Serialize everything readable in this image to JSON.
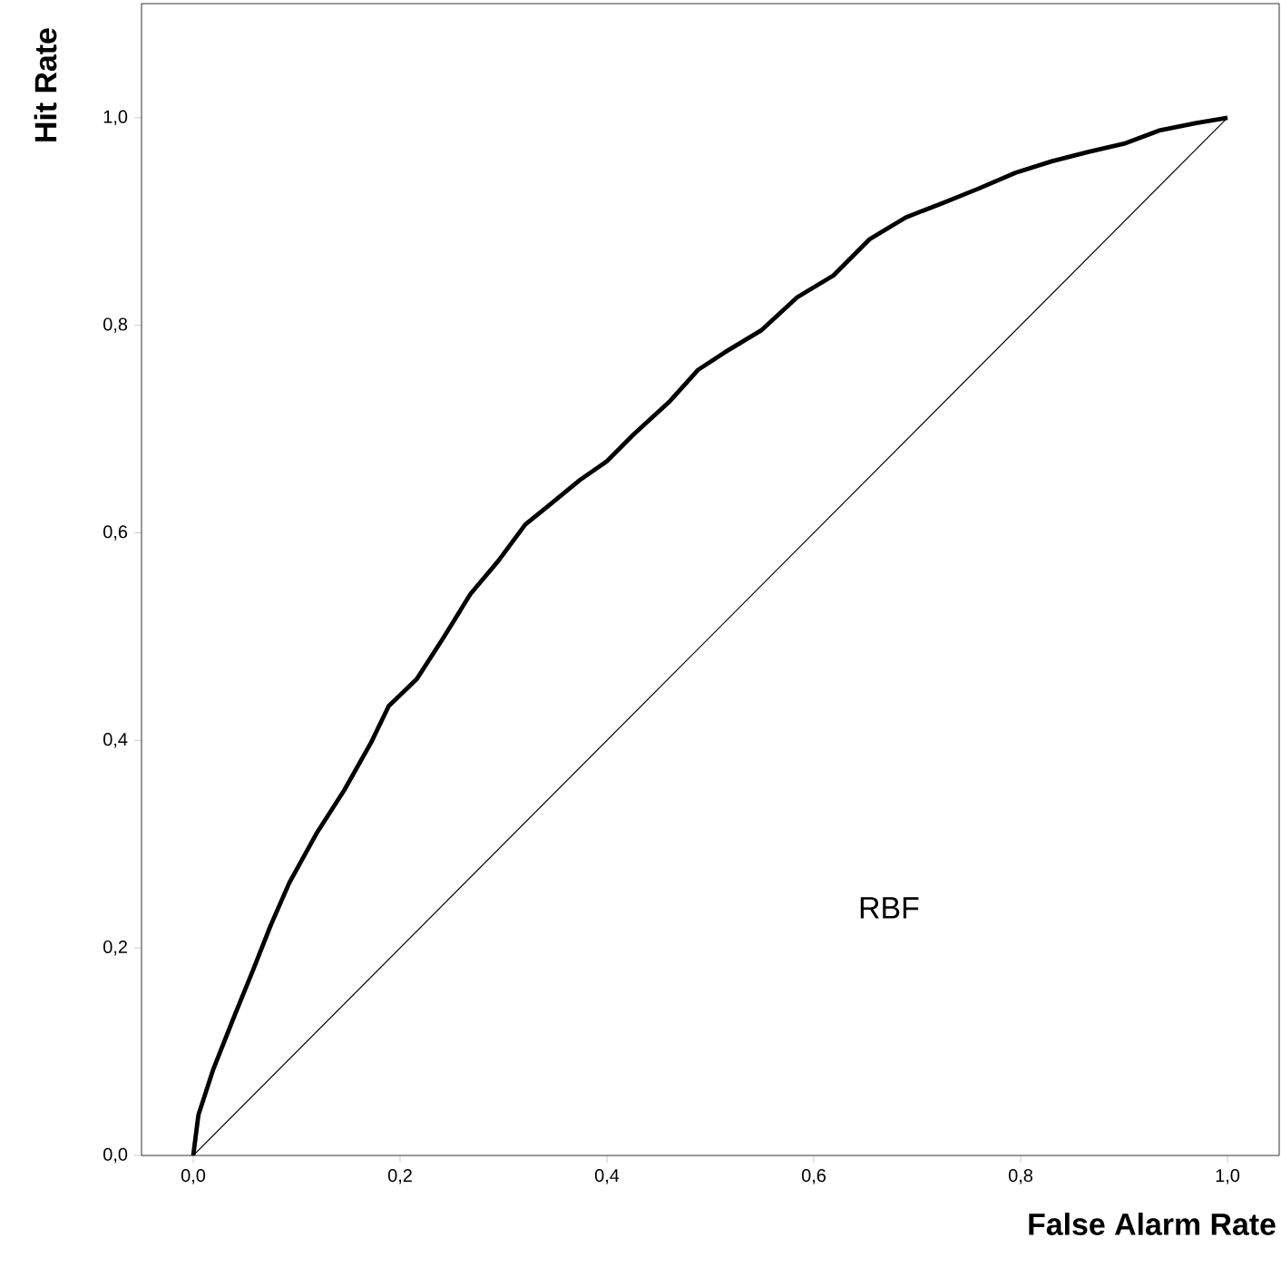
{
  "chart_data": {
    "type": "line",
    "xlabel": "False Alarm Rate",
    "ylabel": "Hit Rate",
    "xlim": [
      -0.05,
      1.05
    ],
    "ylim": [
      0,
      1.11
    ],
    "xticks": [
      {
        "value": 0,
        "label": "0,0"
      },
      {
        "value": 0.2,
        "label": "0,2"
      },
      {
        "value": 0.4,
        "label": "0,4"
      },
      {
        "value": 0.6,
        "label": "0,6"
      },
      {
        "value": 0.8,
        "label": "0,8"
      },
      {
        "value": 1,
        "label": "1,0"
      }
    ],
    "yticks": [
      {
        "value": 0,
        "label": "0,0"
      },
      {
        "value": 0.2,
        "label": "0,2"
      },
      {
        "value": 0.4,
        "label": "0,4"
      },
      {
        "value": 0.6,
        "label": "0,6"
      },
      {
        "value": 0.8,
        "label": "0,8"
      },
      {
        "value": 1,
        "label": "1,0"
      }
    ],
    "marker": "none",
    "line_style": "solid",
    "annotations": [
      "RBF"
    ],
    "series": [
      {
        "color": "#000000",
        "x": [
          0,
          0.005,
          0.019,
          0.04,
          0.058,
          0.075,
          0.093,
          0.119,
          0.146,
          0.172,
          0.189,
          0.216,
          0.242,
          0.268,
          0.295,
          0.321,
          0.347,
          0.374,
          0.4,
          0.426,
          0.461,
          0.488,
          0.514,
          0.549,
          0.584,
          0.619,
          0.654,
          0.689,
          0.725,
          0.76,
          0.795,
          0.83,
          0.865,
          0.9,
          0.935,
          0.97,
          1
        ],
        "values": [
          0,
          0.039,
          0.082,
          0.135,
          0.179,
          0.222,
          0.263,
          0.31,
          0.352,
          0.398,
          0.433,
          0.459,
          0.499,
          0.541,
          0.573,
          0.608,
          0.629,
          0.651,
          0.669,
          0.695,
          0.727,
          0.757,
          0.774,
          0.795,
          0.827,
          0.848,
          0.883,
          0.904,
          0.918,
          0.932,
          0.947,
          0.958,
          0.967,
          0.975,
          0.988,
          0.995,
          1
        ]
      },
      {
        "color": "#000000",
        "x": [
          0,
          1
        ],
        "values": [
          0,
          1
        ]
      }
    ]
  }
}
